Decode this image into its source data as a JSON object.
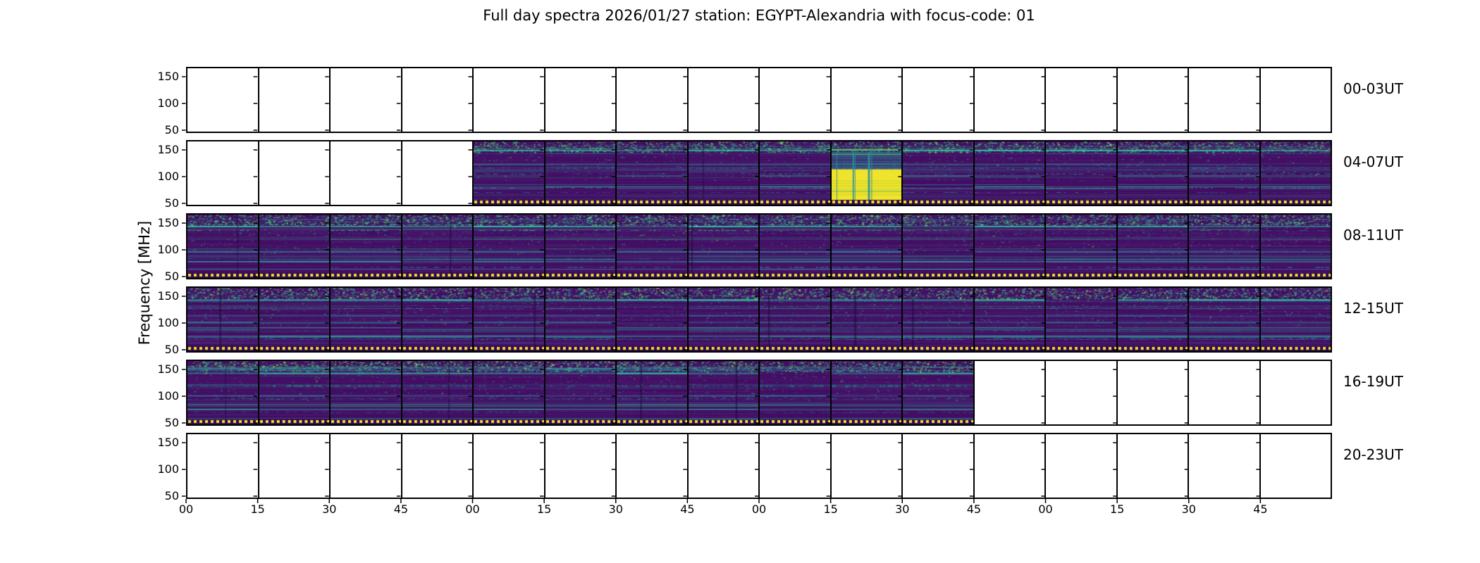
{
  "title": "Full day spectra 2026/01/27 station: EGYPT-Alexandria with focus-code: 01",
  "ylabel": "Frequency [MHz]",
  "chart_data": {
    "type": "heatmap",
    "title": "Full day spectra 2026/01/27 station: EGYPT-Alexandria with focus-code: 01",
    "ylabel": "Frequency [MHz]",
    "colormap": "viridis",
    "y_ticks": [
      "150",
      "100",
      "50"
    ],
    "y_range_mhz": [
      45,
      168
    ],
    "x_tick_labels": [
      "00",
      "15",
      "30",
      "45",
      "00",
      "15",
      "30",
      "45",
      "00",
      "15",
      "30",
      "45",
      "00",
      "15",
      "30",
      "45"
    ],
    "panels_per_row": 16,
    "minutes_per_panel": 15,
    "hours_per_row": 4,
    "rows": [
      {
        "label": "00-03UT",
        "data_start_panel": null,
        "data_end_panel": null
      },
      {
        "label": "04-07UT",
        "data_start_panel": 4,
        "data_end_panel": 16,
        "event": {
          "panel": 9,
          "time": "06:15-06:30",
          "type": "saturated bright burst",
          "color": "#f0e32b"
        }
      },
      {
        "label": "08-11UT",
        "data_start_panel": 0,
        "data_end_panel": 16
      },
      {
        "label": "12-15UT",
        "data_start_panel": 0,
        "data_end_panel": 16
      },
      {
        "label": "16-19UT",
        "data_start_panel": 0,
        "data_end_panel": 11
      },
      {
        "label": "20-23UT",
        "data_start_panel": null,
        "data_end_panel": null
      }
    ]
  },
  "colors": {
    "background": "#ffffff",
    "axis": "#000000",
    "text": "#000000",
    "spectrogram_base": "#420d63",
    "stripe_palette": [
      "#31688e",
      "#26828e",
      "#1f9e89",
      "#2aa5a0",
      "#443983",
      "#35b779"
    ],
    "speckle_palette": [
      "#35b779",
      "#2dd3a5",
      "#5ec962",
      "#21918c",
      "#90d743",
      "#44bf70"
    ],
    "burst_yellow": "#f0e32b",
    "marker_yellow": "#f5e125",
    "marker_gap_dark": "#2c0a50"
  }
}
